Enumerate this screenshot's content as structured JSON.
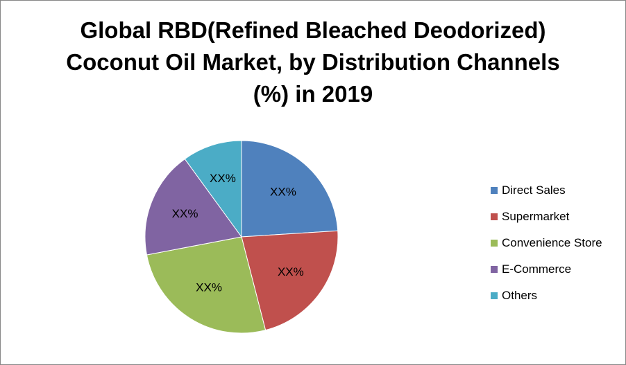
{
  "chart_data": {
    "type": "pie",
    "title_lines": [
      "Global RBD(Refined Bleached Deodorized)",
      "Coconut Oil Market, by Distribution Channels",
      "(%) in 2019"
    ],
    "categories": [
      "Direct Sales",
      "Supermarket",
      "Convenience Store",
      "E-Commerce",
      "Others"
    ],
    "values": [
      24,
      22,
      26,
      18,
      10
    ],
    "data_labels": [
      "XX%",
      "XX%",
      "XX%",
      "XX%",
      "XX%"
    ],
    "colors": [
      "#4f81bd",
      "#c0504d",
      "#9bbb59",
      "#8064a2",
      "#4bacc6"
    ],
    "legend_position": "right"
  }
}
